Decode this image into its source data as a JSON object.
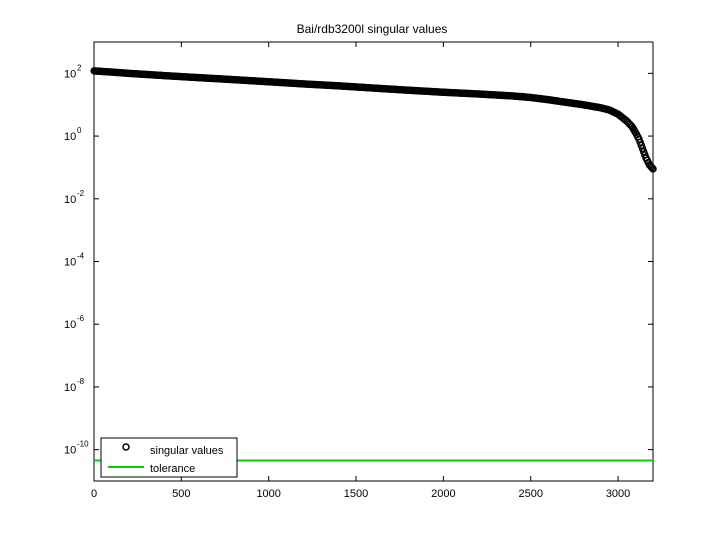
{
  "chart_data": {
    "type": "scatter",
    "title": "Bai/rdb3200l singular values",
    "xlabel": "",
    "ylabel": "",
    "xlim": [
      0,
      3200
    ],
    "ylim": [
      1e-11,
      1000.0
    ],
    "yscale": "log",
    "x_ticks": [
      0,
      500,
      1000,
      1500,
      2000,
      2500,
      3000
    ],
    "y_ticks": [
      {
        "base": "10",
        "exp": "2",
        "value": 100
      },
      {
        "base": "10",
        "exp": "0",
        "value": 1
      },
      {
        "base": "10",
        "exp": "-2",
        "value": 0.01
      },
      {
        "base": "10",
        "exp": "-4",
        "value": 0.0001
      },
      {
        "base": "10",
        "exp": "-6",
        "value": 1e-06
      },
      {
        "base": "10",
        "exp": "-8",
        "value": 1e-08
      },
      {
        "base": "10",
        "exp": "-10",
        "value": 1e-10
      }
    ],
    "grid": false,
    "legend": "bottom-left",
    "series": [
      {
        "name": "singular values",
        "marker": "circle",
        "color": "#000000",
        "x": [
          1,
          100,
          200,
          400,
          600,
          800,
          1000,
          1200,
          1400,
          1600,
          1800,
          2000,
          2200,
          2400,
          2500,
          2600,
          2700,
          2800,
          2900,
          2950,
          3000,
          3050,
          3080,
          3100,
          3120,
          3140,
          3160,
          3180,
          3200
        ],
        "y": [
          120,
          110,
          100,
          85,
          73,
          63,
          54,
          46,
          40,
          34,
          29,
          25,
          22,
          19,
          17,
          14.5,
          12,
          10,
          8,
          6.8,
          5,
          3,
          2,
          1.3,
          0.8,
          0.4,
          0.2,
          0.12,
          0.09
        ]
      },
      {
        "name": "tolerance",
        "marker": "line",
        "color": "#00d000",
        "x": [
          0,
          3200
        ],
        "y": [
          4.5e-11,
          4.5e-11
        ]
      }
    ]
  }
}
